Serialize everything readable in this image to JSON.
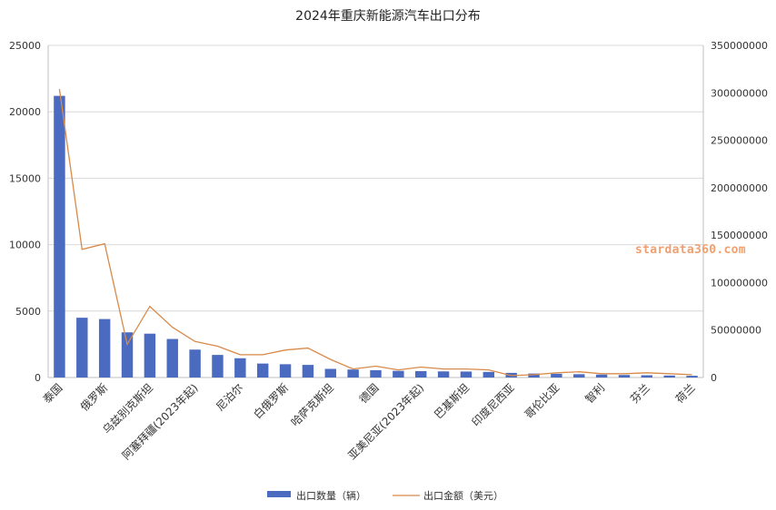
{
  "watermark": "stardata360.com",
  "colors": {
    "bar": "#4a6bbf",
    "line": "#d88a4a",
    "grid": "#d9d9d9",
    "axis": "#333333"
  },
  "chart_data": {
    "type": "bar",
    "title": "2024年重庆新能源汽车出口分布",
    "categories": [
      "泰国",
      "",
      "俄罗斯",
      "",
      "乌兹别克斯坦",
      "",
      "阿塞拜疆(2023年起)",
      "",
      "尼泊尔",
      "",
      "白俄罗斯",
      "",
      "哈萨克斯坦",
      "",
      "德国",
      "",
      "亚美尼亚(2023年起)",
      "",
      "巴基斯坦",
      "",
      "印度尼西亚",
      "",
      "哥伦比亚",
      "",
      "智利",
      "",
      "芬兰",
      "",
      "荷兰"
    ],
    "ylim": [
      0,
      25000
    ],
    "y2lim": [
      0,
      350000000
    ],
    "yticks": [
      "0",
      "5000",
      "10000",
      "15000",
      "20000",
      "25000"
    ],
    "y2ticks": [
      "0",
      "50000000",
      "100000000",
      "150000000",
      "200000000",
      "250000000",
      "300000000",
      "350000000"
    ],
    "grid": true,
    "legend_position": "bottom",
    "series": [
      {
        "name": "出口数量（辆）",
        "type": "bar",
        "axis": "left",
        "values": [
          21200,
          4500,
          4400,
          3400,
          3300,
          2900,
          2100,
          1700,
          1450,
          1050,
          1000,
          950,
          650,
          600,
          550,
          500,
          480,
          460,
          450,
          420,
          350,
          300,
          280,
          250,
          220,
          190,
          170,
          150,
          130
        ]
      },
      {
        "name": "出口金额（美元）",
        "type": "line",
        "axis": "right",
        "values": [
          304000000,
          135000000,
          141000000,
          35000000,
          75000000,
          53000000,
          38000000,
          33000000,
          24000000,
          24000000,
          29000000,
          31000000,
          19000000,
          9000000,
          12000000,
          8000000,
          11000000,
          9000000,
          9000000,
          8000000,
          2000000,
          3000000,
          5000000,
          6000000,
          4000000,
          4000000,
          5000000,
          4000000,
          3000000
        ]
      }
    ]
  }
}
